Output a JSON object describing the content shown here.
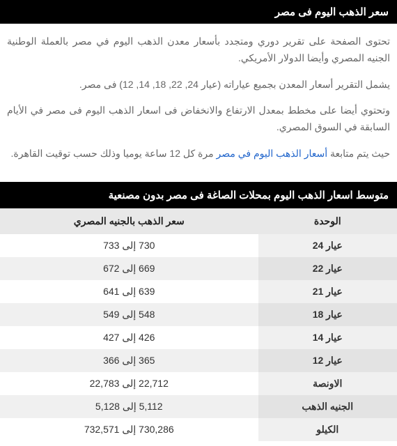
{
  "header": {
    "title": "سعر الذهب اليوم فى مصر"
  },
  "paragraphs": {
    "p1": "تحتوى الصفحة على تقرير دوري ومتجدد بأسعار معدن الذهب اليوم في مصر بالعملة الوطنية الجنيه المصري وأيضا الدولار الأمريكي.",
    "p2": "يشمل التقرير أسعار المعدن بجميع عياراته (عيار 24, 22, 18, 14, 12) فى مصر.",
    "p3": "وتحتوي أيضا على مخطط بمعدل الارتفاع والانخفاض فى اسعار الذهب اليوم فى مصر في الأيام السابقة في السوق المصري.",
    "p4_pre": "حيث يتم متابعة ",
    "p4_link": "أسعار الذهب اليوم في مصر",
    "p4_post": " مرة كل 12 ساعة يوميا وذلك حسب توقيت القاهرة."
  },
  "table": {
    "title": "متوسط اسعار الذهب اليوم بمحلات الصاغة فى مصر بدون مصنعية",
    "col_unit": "الوحدة",
    "col_price": "سعر الذهب بالجنيه المصري",
    "rows": [
      {
        "unit": "عيار 24",
        "price": "730 إلى 733"
      },
      {
        "unit": "عيار 22",
        "price": "669 إلى 672"
      },
      {
        "unit": "عيار 21",
        "price": "639 إلى 641"
      },
      {
        "unit": "عيار 18",
        "price": "548 إلى 549"
      },
      {
        "unit": "عيار 14",
        "price": "426 إلى 427"
      },
      {
        "unit": "عيار 12",
        "price": "365 إلى 366"
      },
      {
        "unit": "الاونصة",
        "price": "22,712 إلى 22,783"
      },
      {
        "unit": "الجنيه الذهب",
        "price": "5,112 إلى 5,128"
      },
      {
        "unit": "الكيلو",
        "price": "730,286 إلى 732,571"
      }
    ]
  }
}
